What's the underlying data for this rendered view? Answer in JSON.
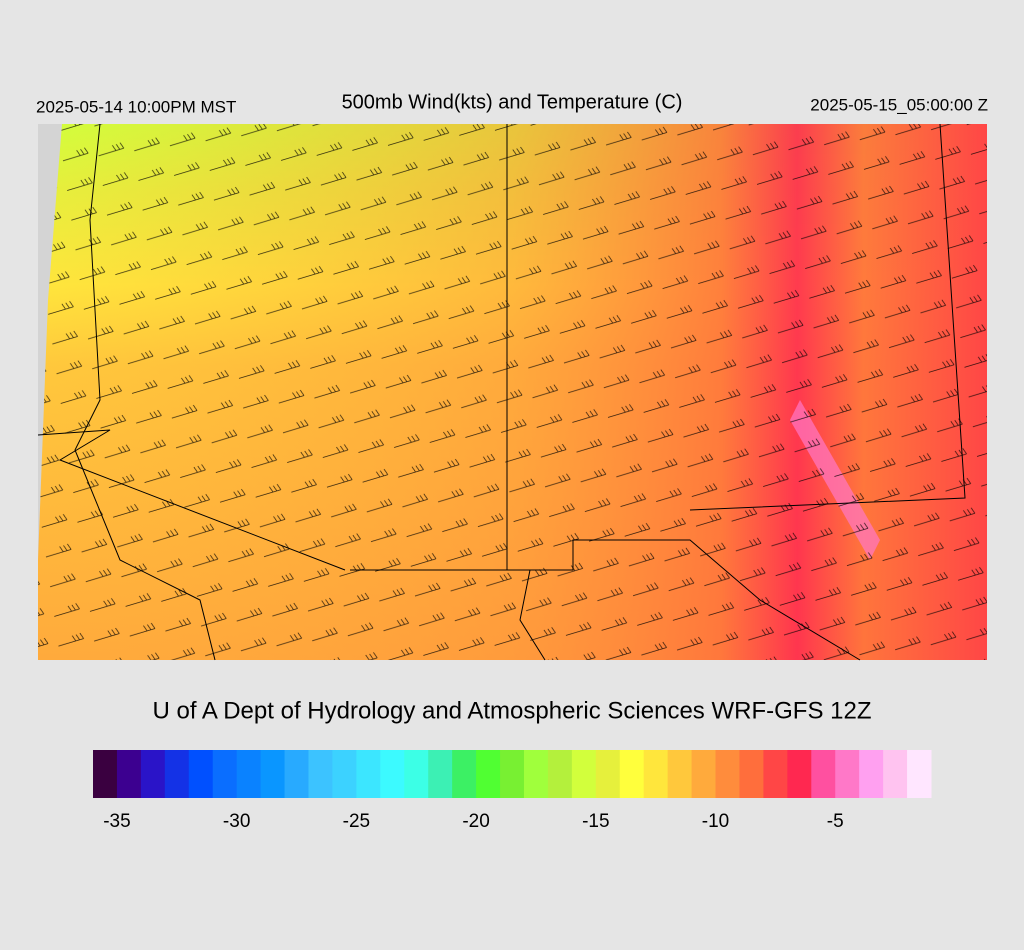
{
  "header": {
    "left_time": "2025-05-14 10:00PM MST",
    "title": "500mb Wind(kts) and Temperature (C)",
    "right_time": "2025-05-15_05:00:00 Z"
  },
  "credit": "U of A Dept of Hydrology and Atmospheric Sciences WRF-GFS 12Z",
  "colorbar": {
    "lim": [
      -36,
      -1
    ],
    "ticks": [
      -35,
      -30,
      -25,
      -20,
      -15,
      -10,
      -5
    ],
    "colors": [
      "#3a0040",
      "#3c0090",
      "#2a14c8",
      "#1432e6",
      "#0050ff",
      "#0a6eff",
      "#0a82ff",
      "#0a96ff",
      "#28aaff",
      "#3cc3ff",
      "#3cd2ff",
      "#3ce6ff",
      "#3cfaff",
      "#3cffe6",
      "#3cf0b4",
      "#3cf064",
      "#50ff32",
      "#78f032",
      "#a0ff3c",
      "#b4f03c",
      "#d2ff3c",
      "#e6f03c",
      "#ffff3c",
      "#ffe63c",
      "#ffc83c",
      "#ffaa3c",
      "#ff8c3c",
      "#ff6e3c",
      "#ff4646",
      "#ff2850",
      "#ff50a0",
      "#ff78c8",
      "#ffa0f0",
      "#ffc3f0",
      "#ffe6ff"
    ]
  }
}
